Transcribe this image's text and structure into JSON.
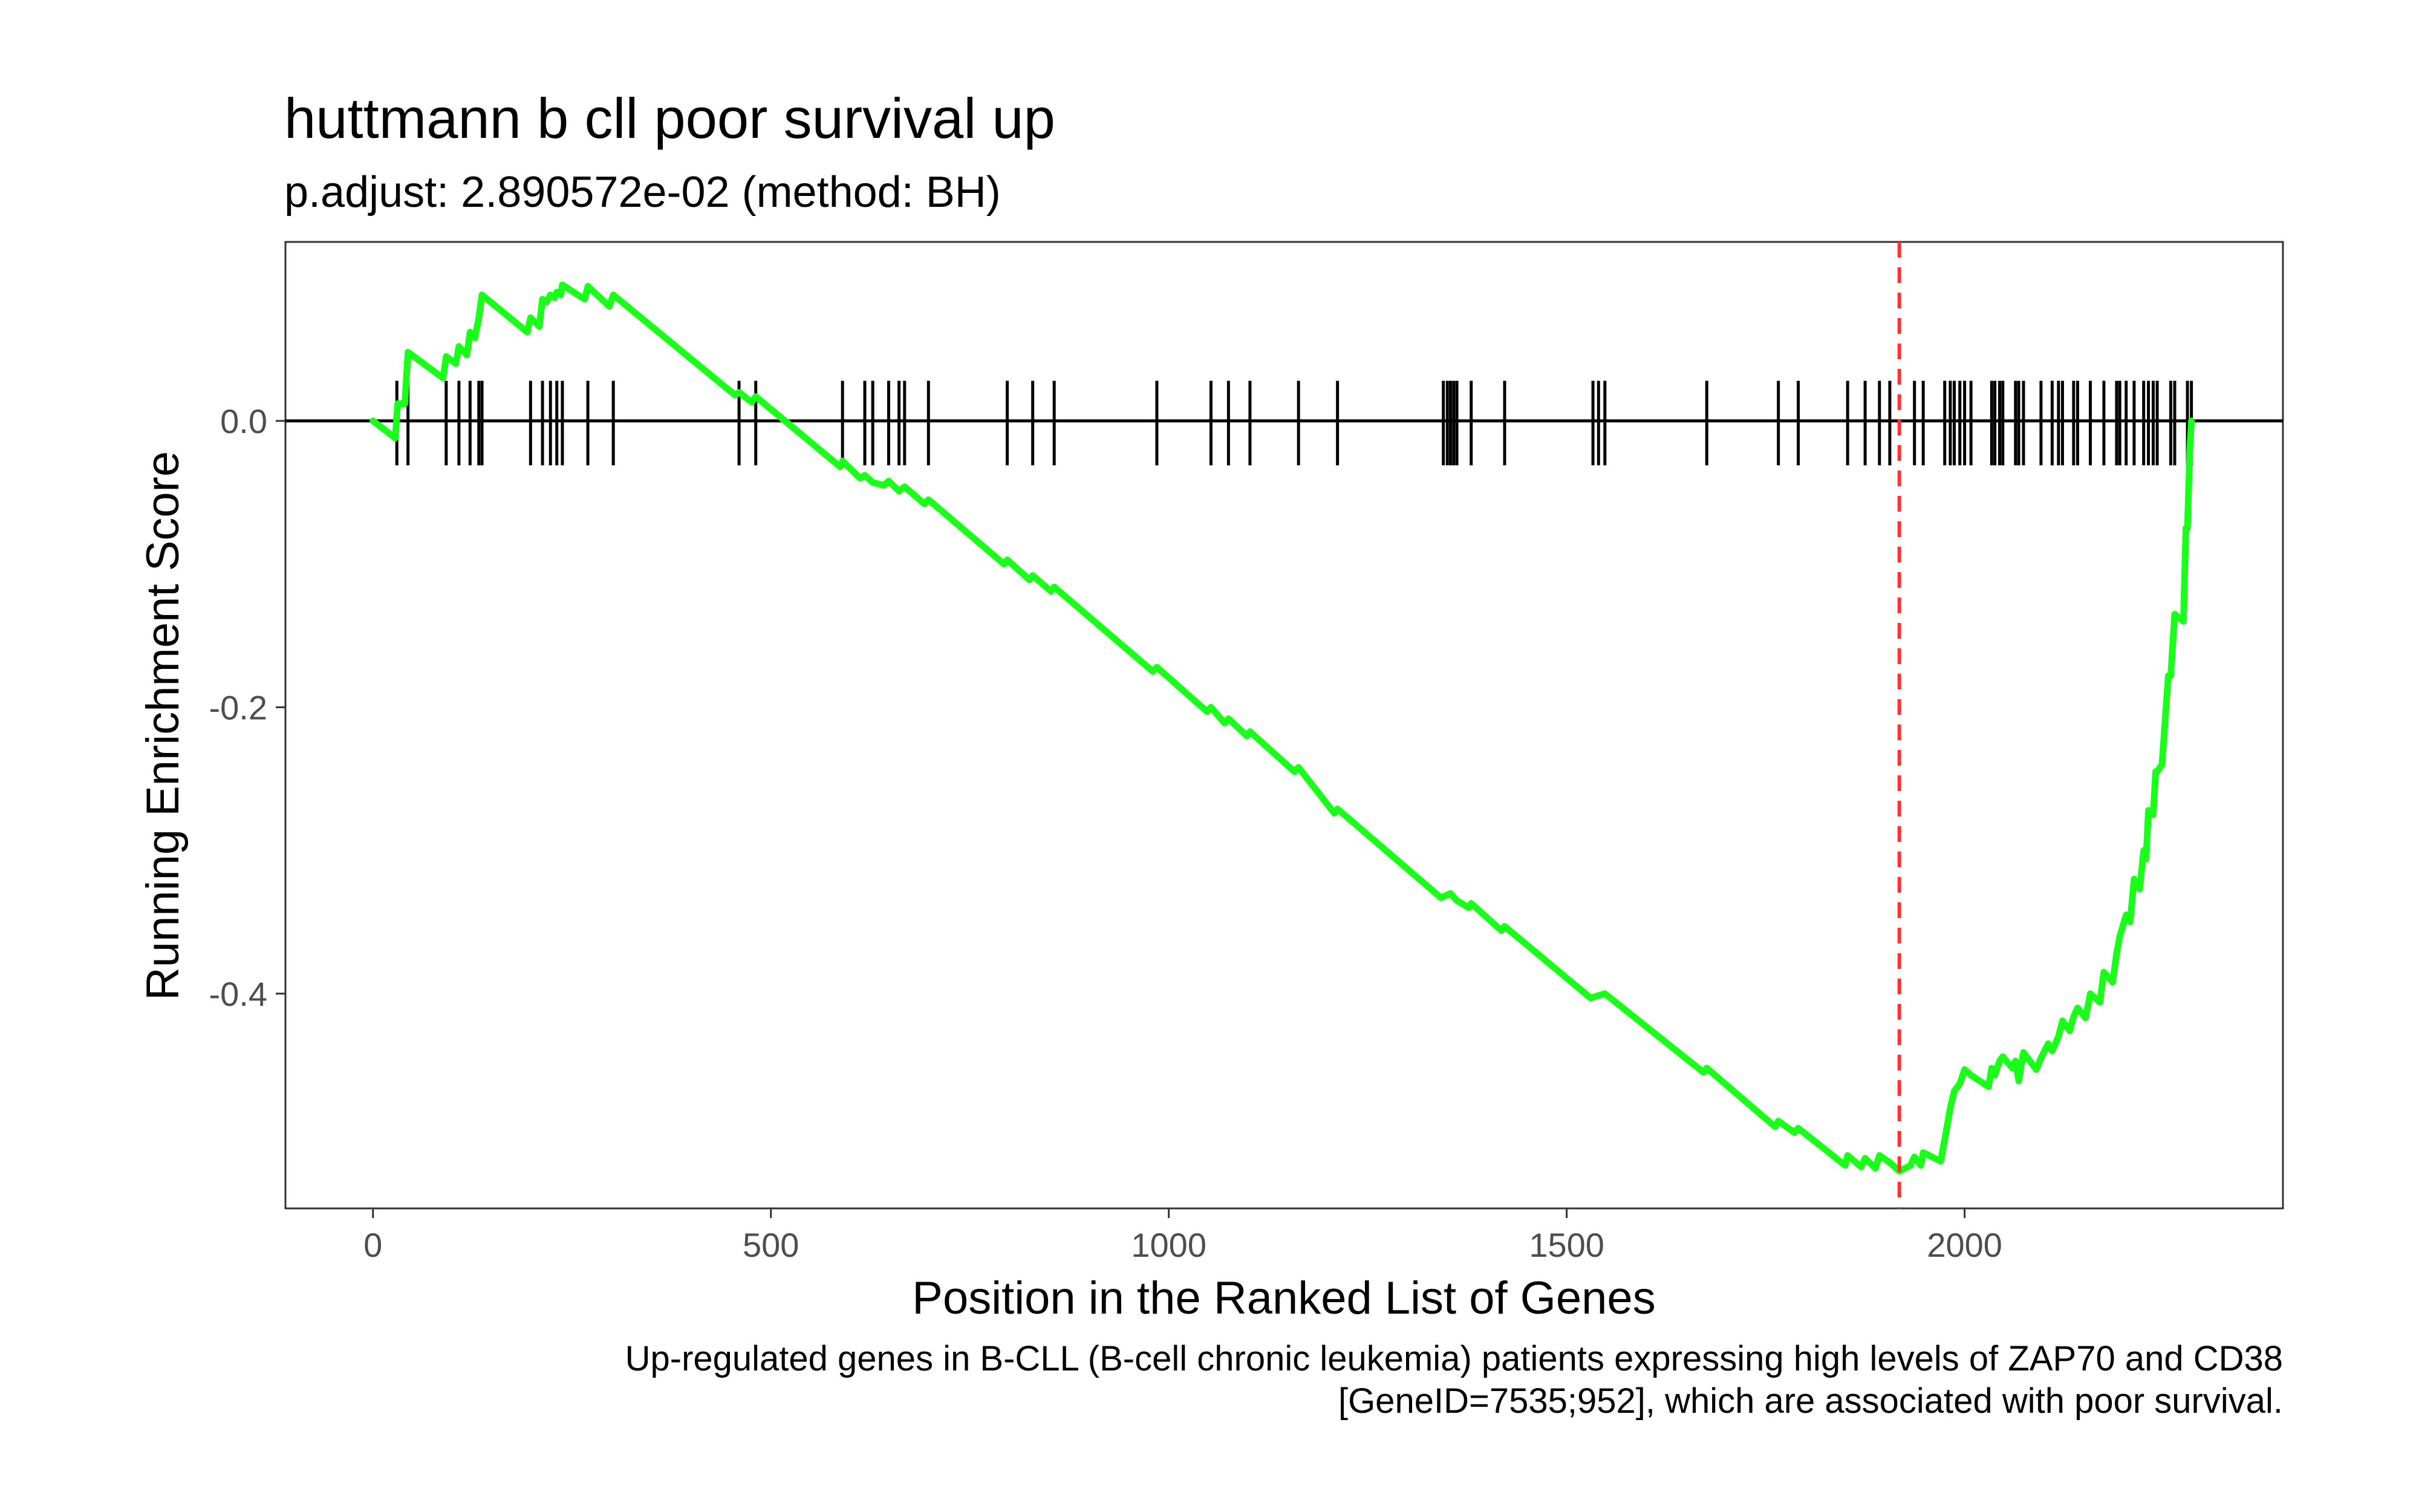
{
  "chart_data": {
    "type": "line",
    "title": "huttmann b cll poor survival up",
    "subtitle": "p.adjust: 2.890572e-02 (method: BH)",
    "xlabel": "Position in the Ranked List of Genes",
    "ylabel": "Running Enrichment Score",
    "caption": [
      "Up-regulated genes in B-CLL (B-cell chronic leukemia) patients expressing high levels of ZAP70 and CD38",
      "[GeneID=7535;952], which are associated with poor survival."
    ],
    "xlim": [
      -110,
      2400
    ],
    "ylim": [
      -0.55,
      0.125
    ],
    "x_ticks": [
      0,
      500,
      1000,
      1500,
      2000
    ],
    "x_tick_labels": [
      "0",
      "500",
      "1000",
      "1500",
      "2000"
    ],
    "y_ticks": [
      0.0,
      -0.2,
      -0.4
    ],
    "y_tick_labels": [
      "0.0",
      "-0.2",
      "-0.4"
    ],
    "grid": false,
    "colors": {
      "curve": "#1aff1a",
      "cutoff": "#ff3333",
      "hits": "#000000",
      "zero": "#000000"
    },
    "cutoff_x": 1918,
    "hit_positions": [
      30,
      44,
      92,
      108,
      122,
      133,
      137,
      198,
      213,
      223,
      231,
      238,
      270,
      302,
      460,
      481,
      590,
      618,
      628,
      648,
      661,
      668,
      698,
      797,
      829,
      856,
      985,
      1053,
      1075,
      1102,
      1163,
      1212,
      1345,
      1350,
      1354,
      1358,
      1362,
      1380,
      1422,
      1533,
      1540,
      1548,
      1676,
      1766,
      1791,
      1853,
      1875,
      1893,
      1906,
      1937,
      1948,
      1975,
      1982,
      1987,
      1994,
      2000,
      2008,
      2034,
      2038,
      2044,
      2048,
      2064,
      2068,
      2074,
      2096,
      2110,
      2118,
      2123,
      2137,
      2142,
      2158,
      2175,
      2191,
      2195,
      2203,
      2213,
      2225,
      2231,
      2237,
      2242,
      2259,
      2264,
      2280,
      2285
    ],
    "series": [
      {
        "values": [
          [
            0,
            0.0
          ],
          [
            28,
            -0.012
          ],
          [
            31,
            0.012
          ],
          [
            40,
            0.012
          ],
          [
            44,
            0.048
          ],
          [
            88,
            0.03
          ],
          [
            92,
            0.045
          ],
          [
            104,
            0.04
          ],
          [
            108,
            0.052
          ],
          [
            118,
            0.046
          ],
          [
            122,
            0.062
          ],
          [
            128,
            0.058
          ],
          [
            133,
            0.072
          ],
          [
            137,
            0.088
          ],
          [
            194,
            0.062
          ],
          [
            198,
            0.072
          ],
          [
            209,
            0.066
          ],
          [
            213,
            0.085
          ],
          [
            218,
            0.083
          ],
          [
            223,
            0.088
          ],
          [
            228,
            0.086
          ],
          [
            231,
            0.09
          ],
          [
            236,
            0.088
          ],
          [
            238,
            0.095
          ],
          [
            266,
            0.085
          ],
          [
            270,
            0.094
          ],
          [
            297,
            0.08
          ],
          [
            302,
            0.088
          ],
          [
            455,
            0.018
          ],
          [
            460,
            0.02
          ],
          [
            476,
            0.013
          ],
          [
            481,
            0.017
          ],
          [
            587,
            -0.032
          ],
          [
            590,
            -0.028
          ],
          [
            612,
            -0.04
          ],
          [
            618,
            -0.038
          ],
          [
            628,
            -0.043
          ],
          [
            642,
            -0.045
          ],
          [
            648,
            -0.042
          ],
          [
            661,
            -0.049
          ],
          [
            668,
            -0.046
          ],
          [
            693,
            -0.058
          ],
          [
            698,
            -0.055
          ],
          [
            793,
            -0.1
          ],
          [
            797,
            -0.097
          ],
          [
            825,
            -0.111
          ],
          [
            829,
            -0.108
          ],
          [
            852,
            -0.119
          ],
          [
            856,
            -0.116
          ],
          [
            980,
            -0.175
          ],
          [
            985,
            -0.172
          ],
          [
            1048,
            -0.203
          ],
          [
            1053,
            -0.2
          ],
          [
            1070,
            -0.211
          ],
          [
            1075,
            -0.208
          ],
          [
            1098,
            -0.22
          ],
          [
            1102,
            -0.217
          ],
          [
            1158,
            -0.245
          ],
          [
            1163,
            -0.242
          ],
          [
            1208,
            -0.274
          ],
          [
            1212,
            -0.271
          ],
          [
            1342,
            -0.333
          ],
          [
            1354,
            -0.33
          ],
          [
            1362,
            -0.335
          ],
          [
            1377,
            -0.34
          ],
          [
            1380,
            -0.337
          ],
          [
            1418,
            -0.356
          ],
          [
            1422,
            -0.353
          ],
          [
            1530,
            -0.403
          ],
          [
            1548,
            -0.4
          ],
          [
            1672,
            -0.455
          ],
          [
            1676,
            -0.452
          ],
          [
            1762,
            -0.493
          ],
          [
            1766,
            -0.489
          ],
          [
            1786,
            -0.497
          ],
          [
            1791,
            -0.494
          ],
          [
            1850,
            -0.52
          ],
          [
            1853,
            -0.513
          ],
          [
            1870,
            -0.521
          ],
          [
            1875,
            -0.515
          ],
          [
            1888,
            -0.522
          ],
          [
            1893,
            -0.513
          ],
          [
            1906,
            -0.518
          ],
          [
            1918,
            -0.524
          ],
          [
            1932,
            -0.52
          ],
          [
            1937,
            -0.514
          ],
          [
            1945,
            -0.52
          ],
          [
            1948,
            -0.511
          ],
          [
            1970,
            -0.517
          ],
          [
            1975,
            -0.502
          ],
          [
            1982,
            -0.48
          ],
          [
            1987,
            -0.468
          ],
          [
            1994,
            -0.463
          ],
          [
            2000,
            -0.453
          ],
          [
            2008,
            -0.457
          ],
          [
            2030,
            -0.465
          ],
          [
            2034,
            -0.452
          ],
          [
            2038,
            -0.457
          ],
          [
            2044,
            -0.447
          ],
          [
            2048,
            -0.444
          ],
          [
            2060,
            -0.452
          ],
          [
            2064,
            -0.447
          ],
          [
            2068,
            -0.461
          ],
          [
            2074,
            -0.441
          ],
          [
            2090,
            -0.453
          ],
          [
            2096,
            -0.445
          ],
          [
            2105,
            -0.435
          ],
          [
            2110,
            -0.44
          ],
          [
            2118,
            -0.43
          ],
          [
            2123,
            -0.419
          ],
          [
            2132,
            -0.426
          ],
          [
            2137,
            -0.416
          ],
          [
            2142,
            -0.41
          ],
          [
            2152,
            -0.417
          ],
          [
            2158,
            -0.4
          ],
          [
            2170,
            -0.406
          ],
          [
            2175,
            -0.385
          ],
          [
            2186,
            -0.392
          ],
          [
            2191,
            -0.372
          ],
          [
            2195,
            -0.36
          ],
          [
            2203,
            -0.345
          ],
          [
            2208,
            -0.35
          ],
          [
            2213,
            -0.32
          ],
          [
            2220,
            -0.327
          ],
          [
            2225,
            -0.3
          ],
          [
            2228,
            -0.306
          ],
          [
            2231,
            -0.272
          ],
          [
            2237,
            -0.275
          ],
          [
            2240,
            -0.245
          ],
          [
            2242,
            -0.245
          ],
          [
            2248,
            -0.24
          ],
          [
            2256,
            -0.178
          ],
          [
            2259,
            -0.178
          ],
          [
            2264,
            -0.135
          ],
          [
            2275,
            -0.14
          ],
          [
            2278,
            -0.075
          ],
          [
            2280,
            -0.075
          ],
          [
            2283,
            -0.02
          ],
          [
            2285,
            0.0
          ]
        ]
      }
    ]
  }
}
